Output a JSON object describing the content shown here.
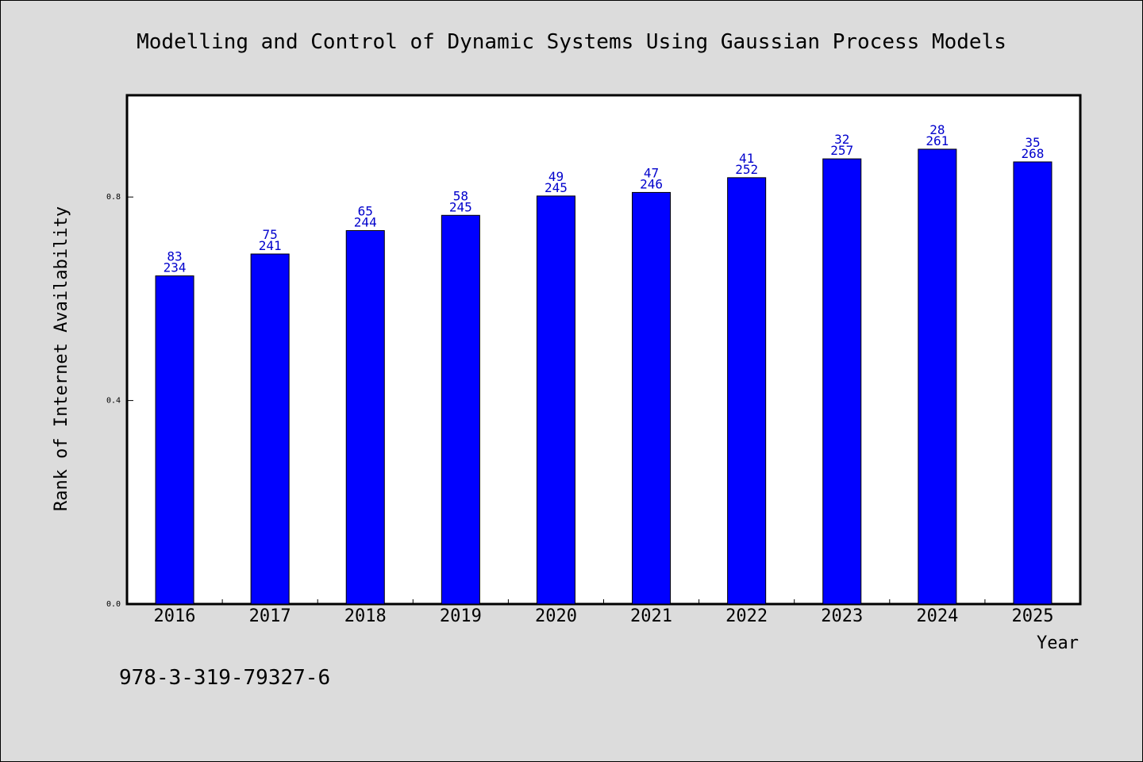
{
  "isbn": "978-3-319-79327-6",
  "chart_data": {
    "type": "bar",
    "title": "Modelling and Control of Dynamic Systems Using Gaussian Process Models",
    "xlabel": "Year",
    "ylabel": "Rank of Internet Availability",
    "categories": [
      "2016",
      "2017",
      "2018",
      "2019",
      "2020",
      "2021",
      "2022",
      "2023",
      "2024",
      "2025"
    ],
    "values": [
      0.645,
      0.688,
      0.734,
      0.764,
      0.802,
      0.809,
      0.838,
      0.875,
      0.894,
      0.869
    ],
    "annotations_top": [
      "83",
      "75",
      "65",
      "58",
      "49",
      "47",
      "41",
      "32",
      "28",
      "35"
    ],
    "annotations_bottom": [
      "234",
      "241",
      "244",
      "245",
      "245",
      "246",
      "252",
      "257",
      "261",
      "268"
    ],
    "yticks": [
      "0.0",
      "0.4",
      "0.8"
    ],
    "ytick_values": [
      0.0,
      0.4,
      0.8
    ],
    "ylim": [
      0,
      1.0
    ],
    "grid": false,
    "colors": {
      "bar": "#0000ff",
      "annotation": "#0000cc",
      "plot_bg": "#ffffff",
      "page_bg": "#dcdcdc"
    }
  }
}
